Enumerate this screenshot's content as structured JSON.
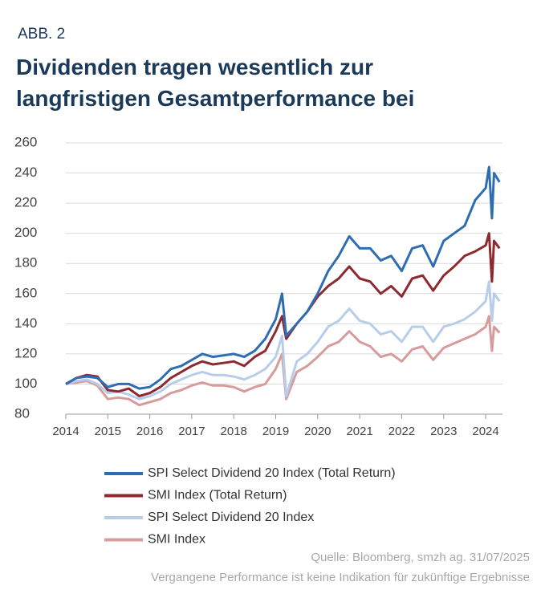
{
  "chart_data": {
    "type": "line",
    "label": "ABB. 2",
    "title": "Dividenden tragen wesentlich zur langfristigen Gesamtperformance bei",
    "x": [
      2014,
      2014.25,
      2014.5,
      2014.75,
      2015,
      2015.25,
      2015.5,
      2015.75,
      2016,
      2016.25,
      2016.5,
      2016.75,
      2017,
      2017.25,
      2017.5,
      2017.75,
      2018,
      2018.25,
      2018.5,
      2018.75,
      2019,
      2019.15,
      2019.25,
      2019.5,
      2019.75,
      2020,
      2020.25,
      2020.5,
      2020.75,
      2021,
      2021.25,
      2021.5,
      2021.75,
      2022,
      2022.25,
      2022.5,
      2022.75,
      2023,
      2023.25,
      2023.5,
      2023.75,
      2024,
      2024.08,
      2024.15,
      2024.2,
      2024.33
    ],
    "series": [
      {
        "name": "SPI Select Dividend 20 Index (Total Return)",
        "color": "#2f6db3",
        "values": [
          100,
          104,
          105,
          104,
          98,
          100,
          100,
          97,
          98,
          103,
          110,
          112,
          116,
          120,
          118,
          119,
          120,
          118,
          122,
          130,
          143,
          160,
          132,
          140,
          148,
          160,
          175,
          185,
          198,
          190,
          190,
          182,
          185,
          175,
          190,
          192,
          178,
          195,
          200,
          205,
          222,
          230,
          244,
          210,
          240,
          234
        ]
      },
      {
        "name": "SMI Index (Total Return)",
        "color": "#8c2a30",
        "values": [
          100,
          104,
          106,
          105,
          96,
          95,
          97,
          92,
          94,
          98,
          104,
          108,
          112,
          115,
          113,
          114,
          115,
          112,
          118,
          122,
          135,
          145,
          130,
          140,
          148,
          158,
          165,
          170,
          178,
          170,
          168,
          160,
          165,
          158,
          170,
          172,
          162,
          172,
          178,
          185,
          188,
          192,
          200,
          168,
          195,
          190
        ]
      },
      {
        "name": "SPI Select Dividend 20 Index",
        "color": "#b8cde9",
        "values": [
          100,
          102,
          103,
          100,
          94,
          95,
          93,
          90,
          92,
          95,
          100,
          103,
          106,
          108,
          106,
          106,
          105,
          103,
          106,
          110,
          118,
          132,
          92,
          115,
          120,
          128,
          138,
          142,
          150,
          142,
          140,
          133,
          135,
          128,
          138,
          138,
          128,
          138,
          140,
          143,
          148,
          155,
          168,
          142,
          160,
          155
        ]
      },
      {
        "name": "SMI Index",
        "color": "#d89b9c",
        "values": [
          100,
          101,
          102,
          99,
          90,
          91,
          90,
          86,
          88,
          90,
          94,
          96,
          99,
          101,
          99,
          99,
          98,
          95,
          98,
          100,
          110,
          120,
          90,
          108,
          112,
          118,
          125,
          128,
          135,
          128,
          125,
          118,
          120,
          115,
          123,
          125,
          116,
          124,
          127,
          130,
          133,
          138,
          145,
          122,
          138,
          134
        ]
      }
    ],
    "xlim": [
      2014,
      2024.4
    ],
    "xticks": [
      2014,
      2015,
      2016,
      2017,
      2018,
      2019,
      2020,
      2021,
      2022,
      2023,
      2024
    ],
    "ylim": [
      80,
      260
    ],
    "yticks": [
      80,
      100,
      120,
      140,
      160,
      180,
      200,
      220,
      240,
      260
    ],
    "grid": true,
    "notes": [
      "Quelle: Bloomberg, smzh ag. 31/07/2025",
      "Vergangene Performance ist keine Indikation für zukünftige Ergebnisse"
    ]
  }
}
